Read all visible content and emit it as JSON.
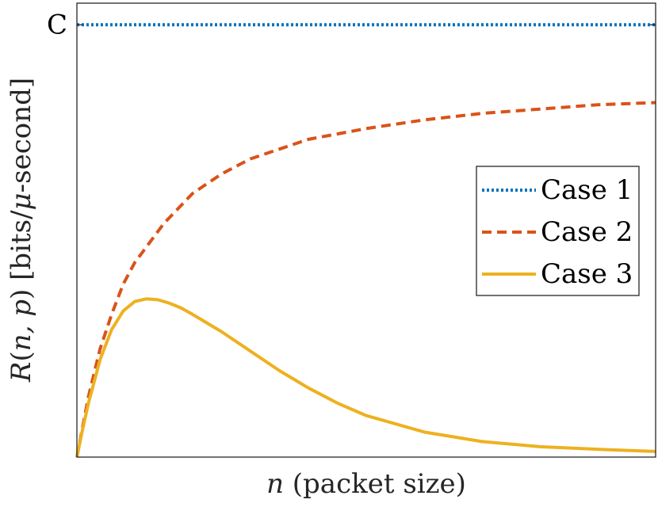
{
  "chart_data": {
    "type": "line",
    "title": "",
    "xlabel": "n (packet size)",
    "ylabel": "R(n, p) [bits/μ-second]",
    "ytick_labels": [
      "C"
    ],
    "ytick_value": 1.0,
    "xlim": [
      0,
      100
    ],
    "ylim": [
      0,
      1.05
    ],
    "grid": false,
    "legend": "center-right",
    "series": [
      {
        "name": "Case 1",
        "color": "#0072BD",
        "style": "dotted",
        "x": [
          0,
          10,
          20,
          30,
          40,
          50,
          60,
          70,
          80,
          90,
          100
        ],
        "y": [
          1.0,
          1.0,
          1.0,
          1.0,
          1.0,
          1.0,
          1.0,
          1.0,
          1.0,
          1.0,
          1.0
        ]
      },
      {
        "name": "Case 2",
        "color": "#D95319",
        "style": "dashed",
        "x": [
          0,
          1,
          2,
          4,
          6,
          8,
          10,
          15,
          20,
          25,
          30,
          40,
          50,
          60,
          70,
          80,
          90,
          100
        ],
        "y": [
          0.0,
          0.07,
          0.14,
          0.25,
          0.33,
          0.4,
          0.45,
          0.54,
          0.61,
          0.655,
          0.69,
          0.735,
          0.76,
          0.78,
          0.795,
          0.805,
          0.815,
          0.82
        ]
      },
      {
        "name": "Case 3",
        "color": "#EDB120",
        "style": "solid",
        "x": [
          0,
          1,
          2,
          4,
          6,
          8,
          10,
          12,
          14,
          16,
          18,
          20,
          25,
          30,
          35,
          40,
          45,
          50,
          60,
          70,
          80,
          90,
          100
        ],
        "y": [
          0.0,
          0.065,
          0.125,
          0.225,
          0.295,
          0.338,
          0.36,
          0.366,
          0.364,
          0.356,
          0.345,
          0.33,
          0.29,
          0.245,
          0.2,
          0.16,
          0.125,
          0.096,
          0.058,
          0.036,
          0.024,
          0.018,
          0.013
        ]
      }
    ]
  }
}
